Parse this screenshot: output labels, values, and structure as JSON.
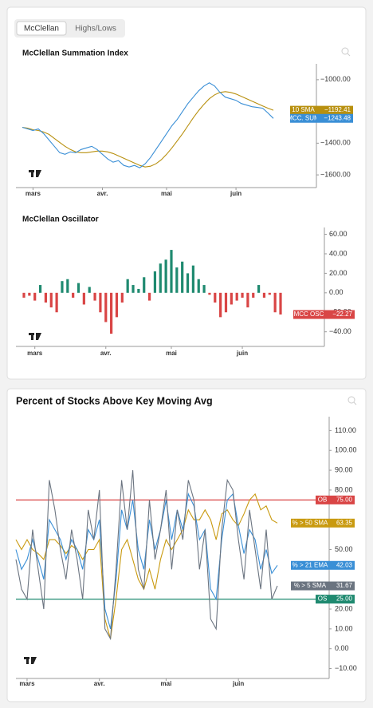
{
  "tabs": [
    "McClellan",
    "Highs/Lows"
  ],
  "chart_data": [
    {
      "type": "line",
      "title": "McClellan Summation Index",
      "xlim": [
        0,
        47
      ],
      "xticks": [
        {
          "value": 2,
          "label": "mars"
        },
        {
          "value": 15,
          "label": "avr."
        },
        {
          "value": 27,
          "label": "mai"
        },
        {
          "value": 40,
          "label": "juin"
        }
      ],
      "ylim": [
        -1680,
        -900
      ],
      "yticks": [
        {
          "value": -1000,
          "label": "−1000.00"
        },
        {
          "value": -1400,
          "label": "−1400.00"
        },
        {
          "value": -1600,
          "label": "−1600.00"
        }
      ],
      "series": [
        {
          "name": "10 SMA",
          "color": "#b8900f",
          "last_label": "−1192.41",
          "values": [
            -1300,
            -1305,
            -1315,
            -1320,
            -1330,
            -1345,
            -1370,
            -1395,
            -1420,
            -1440,
            -1455,
            -1460,
            -1460,
            -1455,
            -1450,
            -1450,
            -1455,
            -1465,
            -1480,
            -1495,
            -1510,
            -1525,
            -1540,
            -1550,
            -1545,
            -1530,
            -1505,
            -1470,
            -1430,
            -1385,
            -1340,
            -1290,
            -1240,
            -1195,
            -1155,
            -1120,
            -1095,
            -1080,
            -1075,
            -1080,
            -1090,
            -1105,
            -1120,
            -1135,
            -1150,
            -1165,
            -1180,
            -1192.41
          ]
        },
        {
          "name": "MCC. SUM",
          "color": "#3a8fd6",
          "last_label": "−1243.48",
          "values": [
            -1300,
            -1310,
            -1320,
            -1310,
            -1340,
            -1380,
            -1420,
            -1460,
            -1470,
            -1455,
            -1460,
            -1440,
            -1430,
            -1420,
            -1440,
            -1470,
            -1500,
            -1520,
            -1510,
            -1540,
            -1550,
            -1540,
            -1555,
            -1530,
            -1490,
            -1440,
            -1390,
            -1340,
            -1290,
            -1250,
            -1200,
            -1150,
            -1110,
            -1070,
            -1040,
            -1020,
            -1040,
            -1080,
            -1110,
            -1120,
            -1130,
            -1150,
            -1160,
            -1170,
            -1175,
            -1180,
            -1210,
            -1243.48
          ]
        }
      ]
    },
    {
      "type": "bar",
      "title": "McClellan Oscillator",
      "xlim": [
        0,
        47
      ],
      "xticks": [
        {
          "value": 2,
          "label": "mars"
        },
        {
          "value": 15,
          "label": "avr."
        },
        {
          "value": 27,
          "label": "mai"
        },
        {
          "value": 40,
          "label": "juin"
        }
      ],
      "ylim": [
        -55,
        67
      ],
      "yticks": [
        {
          "value": 60,
          "label": "60.00"
        },
        {
          "value": 40,
          "label": "40.00"
        },
        {
          "value": 20,
          "label": "20.00"
        },
        {
          "value": 0,
          "label": "0.00"
        },
        {
          "value": -20,
          "label": "−20.00"
        },
        {
          "value": -40,
          "label": "−40.00"
        }
      ],
      "positive_color": "#1f8a70",
      "negative_color": "#d94545",
      "series": [
        {
          "name": "MCC OSC",
          "color": "#d94545",
          "last_label": "−22.27",
          "values": [
            -5,
            -3,
            -8,
            8,
            -10,
            -15,
            -20,
            12,
            14,
            -5,
            10,
            -12,
            6,
            -8,
            -20,
            -30,
            -42,
            -25,
            -10,
            14,
            8,
            4,
            16,
            -8,
            22,
            30,
            34,
            44,
            26,
            32,
            20,
            28,
            14,
            8,
            -2,
            -10,
            -25,
            -20,
            -12,
            -8,
            -5,
            -15,
            -5,
            8,
            -5,
            -2,
            -20,
            -22.27
          ]
        }
      ]
    },
    {
      "type": "line",
      "title": "Percent of Stocks Above Key Moving Avg",
      "xlim": [
        0,
        47
      ],
      "xticks": [
        {
          "value": 2,
          "label": "mars"
        },
        {
          "value": 15,
          "label": "avr."
        },
        {
          "value": 27,
          "label": "mai"
        },
        {
          "value": 40,
          "label": "juin"
        }
      ],
      "ylim": [
        -15,
        117
      ],
      "yticks": [
        {
          "value": 110,
          "label": "110.00"
        },
        {
          "value": 100,
          "label": "100.00"
        },
        {
          "value": 90,
          "label": "90.00"
        },
        {
          "value": 80,
          "label": "80.00"
        },
        {
          "value": 50,
          "label": "50.00"
        },
        {
          "value": 20,
          "label": "20.00"
        },
        {
          "value": 10,
          "label": "10.00"
        },
        {
          "value": 0,
          "label": "0.00"
        },
        {
          "value": -10,
          "label": "−10.00"
        }
      ],
      "reference_lines": [
        {
          "name": "OB",
          "value": 75,
          "label": "75.00",
          "color": "#d94545"
        },
        {
          "name": "OS",
          "value": 25,
          "label": "25.00",
          "color": "#1f8a70"
        }
      ],
      "series": [
        {
          "name": "% > 50 SMA",
          "color": "#c99a10",
          "last_label": "63.35",
          "values": [
            55,
            50,
            55,
            50,
            48,
            45,
            55,
            55,
            52,
            48,
            52,
            50,
            45,
            50,
            50,
            55,
            15,
            5,
            25,
            50,
            55,
            45,
            35,
            30,
            40,
            30,
            45,
            55,
            50,
            55,
            60,
            70,
            65,
            65,
            70,
            65,
            55,
            68,
            70,
            65,
            62,
            68,
            75,
            78,
            70,
            72,
            65,
            63.35
          ]
        },
        {
          "name": "% > 21 EMA",
          "color": "#3a8fd6",
          "last_label": "42.03",
          "values": [
            50,
            40,
            45,
            55,
            45,
            35,
            65,
            60,
            55,
            45,
            55,
            50,
            40,
            60,
            55,
            65,
            20,
            10,
            35,
            70,
            60,
            75,
            50,
            40,
            65,
            50,
            60,
            75,
            55,
            70,
            60,
            78,
            72,
            55,
            60,
            30,
            25,
            55,
            75,
            78,
            62,
            48,
            60,
            55,
            40,
            50,
            38,
            42.03
          ]
        },
        {
          "name": "% > 5 SMA",
          "color": "#6b7480",
          "last_label": "31.67",
          "values": [
            45,
            30,
            25,
            60,
            40,
            20,
            85,
            70,
            50,
            35,
            60,
            45,
            25,
            70,
            55,
            80,
            10,
            5,
            40,
            85,
            60,
            90,
            40,
            30,
            75,
            45,
            60,
            80,
            40,
            70,
            55,
            85,
            75,
            40,
            60,
            15,
            10,
            60,
            85,
            80,
            55,
            35,
            70,
            50,
            30,
            60,
            25,
            31.67
          ]
        }
      ]
    }
  ]
}
